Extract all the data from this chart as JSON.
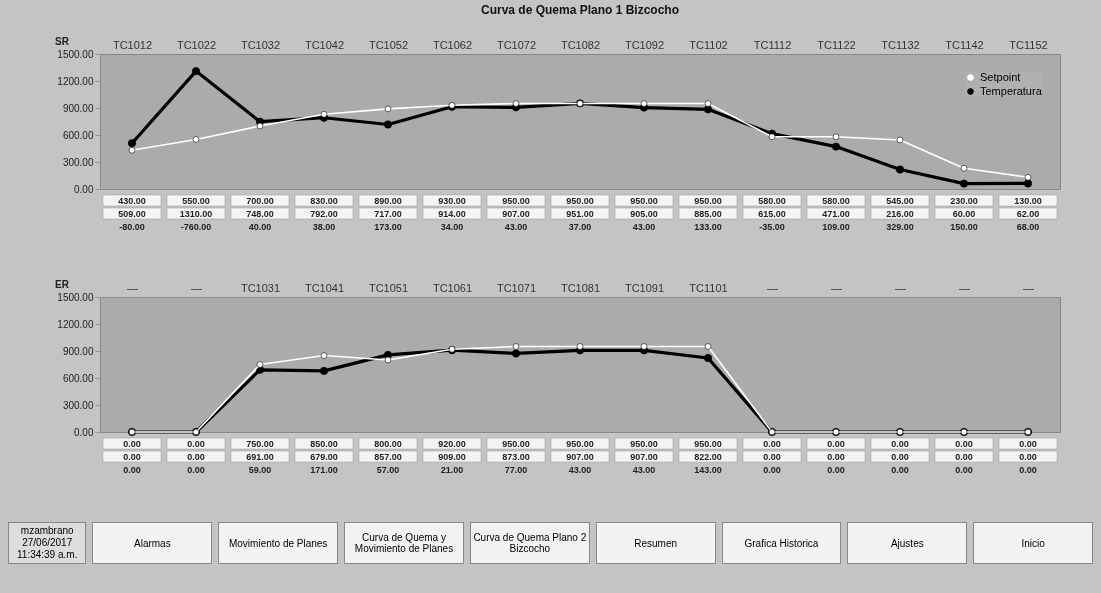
{
  "chart_data": [
    {
      "type": "line",
      "title": "Curva de Quema Plano 1 Bizcocho",
      "legend": "top right",
      "marker": "circle",
      "line_style": "solid",
      "grid": false,
      "categories": [
        "TC1012",
        "TC1022",
        "TC1032",
        "TC1042",
        "TC1052",
        "TC1062",
        "TC1072",
        "TC1082",
        "TC1092",
        "TC1102",
        "TC1112",
        "TC1122",
        "TC1132",
        "TC1142",
        "TC1152"
      ],
      "ylim": [
        0,
        1500
      ],
      "yticks": [
        {
          "value": 0,
          "label": "0.00"
        },
        {
          "value": 300,
          "label": "300.00"
        },
        {
          "value": 600,
          "label": "600.00"
        },
        {
          "value": 900,
          "label": "900.00"
        },
        {
          "value": 1200,
          "label": "1200.00"
        },
        {
          "value": 1500,
          "label": "1500.00"
        }
      ],
      "series": [
        {
          "name": "Setpoint",
          "color": "#ffffff",
          "values": [
            430,
            550,
            700,
            830,
            890,
            930,
            950,
            950,
            950,
            950,
            580,
            580,
            545,
            230,
            130
          ],
          "value_labels": [
            "430.00",
            "550.00",
            "700.00",
            "830.00",
            "890.00",
            "930.00",
            "950.00",
            "950.00",
            "950.00",
            "950.00",
            "580.00",
            "580.00",
            "545.00",
            "230.00",
            "130.00"
          ]
        },
        {
          "name": "Temperatura",
          "color": "#000000",
          "values": [
            509,
            1310,
            748,
            792,
            717,
            914,
            907,
            951,
            905,
            885,
            615,
            471,
            216,
            60,
            62
          ],
          "value_labels": [
            "509.00",
            "1310.00",
            "748.00",
            "792.00",
            "717.00",
            "914.00",
            "907.00",
            "951.00",
            "905.00",
            "885.00",
            "615.00",
            "471.00",
            "216.00",
            "60.00",
            "62.00"
          ]
        }
      ],
      "annotations": [
        "SR",
        "-80.00",
        "-760.00",
        "40.00",
        "38.00",
        "173.00",
        "34.00",
        "43.00",
        "37.00",
        "43.00",
        "133.00",
        "-35.00",
        "109.00",
        "329.00",
        "150.00",
        "68.00"
      ]
    },
    {
      "type": "line",
      "marker": "circle",
      "line_style": "solid",
      "grid": false,
      "categories": [
        "—",
        "—",
        "TC1031",
        "TC1041",
        "TC1051",
        "TC1061",
        "TC1071",
        "TC1081",
        "TC1091",
        "TC1101",
        "—",
        "—",
        "—",
        "—",
        "—"
      ],
      "ylim": [
        0,
        1500
      ],
      "yticks": [
        {
          "value": 0,
          "label": "0.00"
        },
        {
          "value": 300,
          "label": "300.00"
        },
        {
          "value": 600,
          "label": "600.00"
        },
        {
          "value": 900,
          "label": "900.00"
        },
        {
          "value": 1200,
          "label": "1200.00"
        },
        {
          "value": 1500,
          "label": "1500.00"
        }
      ],
      "series": [
        {
          "color": "#ffffff",
          "values": [
            0,
            0,
            750,
            850,
            800,
            920,
            950,
            950,
            950,
            950,
            0,
            0,
            0,
            0,
            0
          ],
          "value_labels": [
            "0.00",
            "0.00",
            "750.00",
            "850.00",
            "800.00",
            "920.00",
            "950.00",
            "950.00",
            "950.00",
            "950.00",
            "0.00",
            "0.00",
            "0.00",
            "0.00",
            "0.00"
          ]
        },
        {
          "color": "#000000",
          "values": [
            0,
            0,
            691,
            679,
            857,
            909,
            873,
            907,
            907,
            822,
            0,
            0,
            0,
            0,
            0
          ],
          "value_labels": [
            "0.00",
            "0.00",
            "691.00",
            "679.00",
            "857.00",
            "909.00",
            "873.00",
            "907.00",
            "907.00",
            "822.00",
            "0.00",
            "0.00",
            "0.00",
            "0.00",
            "0.00"
          ]
        }
      ],
      "annotations": [
        "ER",
        "0.00",
        "0.00",
        "59.00",
        "171.00",
        "57.00",
        "21.00",
        "77.00",
        "43.00",
        "43.00",
        "143.00",
        "0.00",
        "0.00",
        "0.00",
        "0.00",
        "0.00",
        "mzambrano",
        "27/06/2017",
        "11:34:39 a.m.",
        "Alarmas",
        "Movimiento de Planes",
        "Curva de Quema y Movimiento de Planes",
        "Curva de Quema Plano 2 Bizcocho",
        "Resumen",
        "Grafica Historica",
        "Ajustes",
        "Inicio"
      ]
    }
  ]
}
